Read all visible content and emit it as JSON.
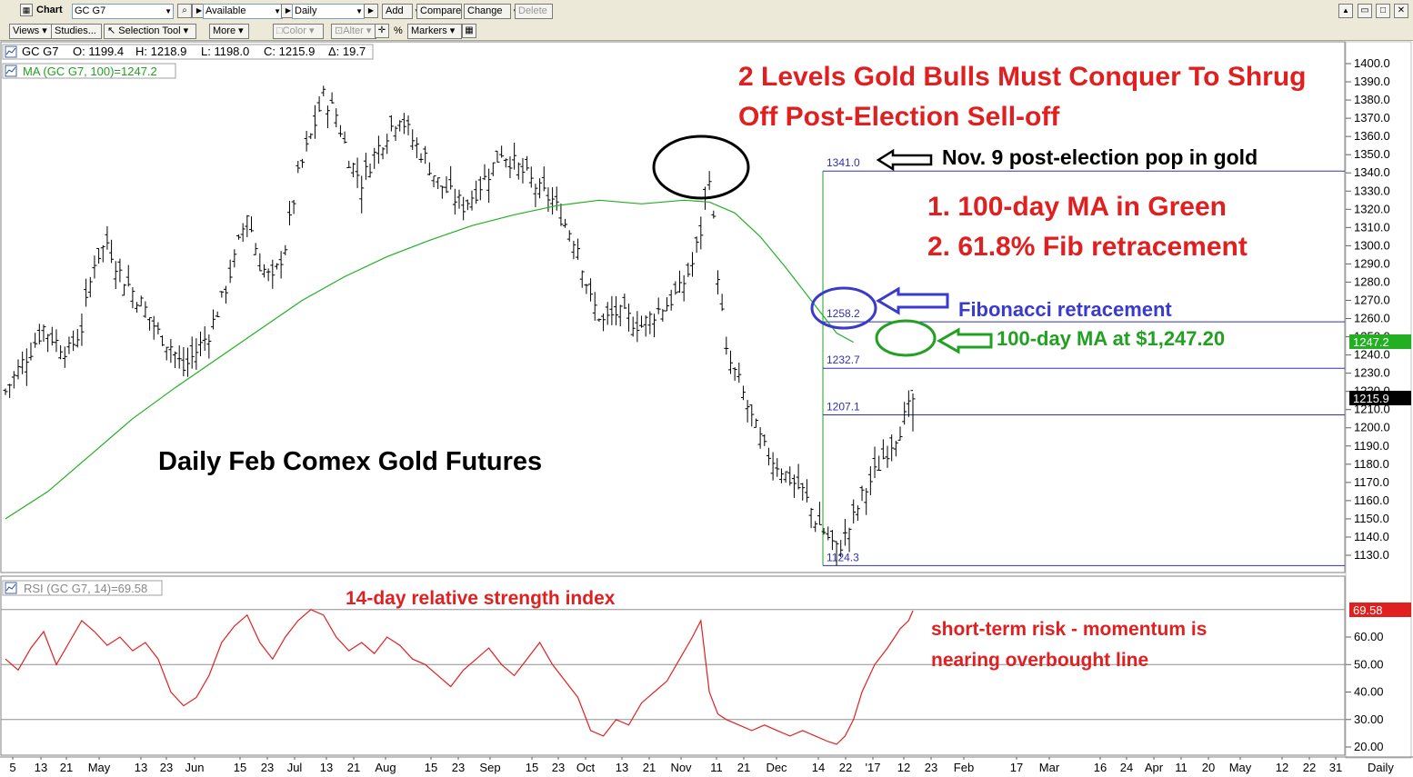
{
  "toolbar": {
    "chart_label": "Chart",
    "symbol": "GC G7",
    "list": "Available",
    "period": "Daily",
    "add": "Add",
    "compare": "Compare",
    "change": "Change",
    "delete": "Delete"
  },
  "toolbar2": {
    "views": "Views",
    "studies": "Studies...",
    "selection_tool": "Selection Tool",
    "more": "More",
    "color": "Color",
    "alter": "Alter",
    "percent": "%",
    "markers": "Markers"
  },
  "price_panel": {
    "symbol_label": "GC G7",
    "open": "O: 1199.4",
    "high": "H: 1218.9",
    "low": "L: 1198.0",
    "close": "C: 1215.9",
    "delta": "Δ: 19.7",
    "ma_label": "MA (GC G7, 100)=1247.2",
    "last_price_tag": "1215.9",
    "ma_price_tag": "1247.2"
  },
  "rsi_panel": {
    "label": "RSI (GC G7, 14)=69.58",
    "value_tag": "69.58",
    "y_ticks": [
      "60.00",
      "50.00",
      "40.00",
      "30.00",
      "20.00"
    ]
  },
  "annotations": {
    "headline_line1": "2 Levels Gold Bulls Must Conquer To Shrug",
    "headline_line2": "Off Post-Election Sell-off",
    "nov9": "Nov. 9 post-election pop in gold",
    "item1": "1. 100-day MA in Green",
    "item2": "2. 61.8% Fib retracement",
    "fib": "Fibonacci retracement",
    "ma": "100-day MA at $1,247.20",
    "chart_title": "Daily Feb Comex Gold Futures",
    "rsi_title": "14-day relative strength index",
    "risk_line1": "short-term risk - momentum is",
    "risk_line2": "nearing overbought line"
  },
  "chart_data": [
    {
      "type": "ohlc",
      "symbol": "GC G7",
      "period": "Daily",
      "ylim": [
        1120,
        1410
      ],
      "y_ticks": [
        "1400.0",
        "1390.0",
        "1380.0",
        "1370.0",
        "1360.0",
        "1350.0",
        "1340.0",
        "1330.0",
        "1320.0",
        "1310.0",
        "1300.0",
        "1290.0",
        "1280.0",
        "1270.0",
        "1260.0",
        "1250.0",
        "1240.0",
        "1230.0",
        "1220.0",
        "1210.0",
        "1200.0",
        "1190.0",
        "1180.0",
        "1170.0",
        "1160.0",
        "1150.0",
        "1140.0",
        "1130.0"
      ],
      "x_ticks": [
        "5",
        "13",
        "21",
        "May",
        "13",
        "23",
        "Jun",
        "15",
        "23",
        "Jul",
        "13",
        "21",
        "Aug",
        "15",
        "23",
        "Sep",
        "15",
        "23",
        "Oct",
        "13",
        "21",
        "Nov",
        "11",
        "21",
        "Dec",
        "14",
        "22",
        "'17",
        "12",
        "23",
        "Feb",
        "17",
        "Mar",
        "16",
        "24",
        "Apr",
        "11",
        "20",
        "May",
        "12",
        "22",
        "31",
        "Daily"
      ],
      "close_path": [
        [
          0,
          1220
        ],
        [
          3,
          1232
        ],
        [
          6,
          1243
        ],
        [
          9,
          1255
        ],
        [
          12,
          1247
        ],
        [
          15,
          1242
        ],
        [
          18,
          1255
        ],
        [
          21,
          1292
        ],
        [
          24,
          1302
        ],
        [
          27,
          1285
        ],
        [
          30,
          1275
        ],
        [
          33,
          1265
        ],
        [
          36,
          1252
        ],
        [
          39,
          1245
        ],
        [
          42,
          1232
        ],
        [
          45,
          1242
        ],
        [
          48,
          1252
        ],
        [
          51,
          1270
        ],
        [
          54,
          1292
        ],
        [
          57,
          1318
        ],
        [
          60,
          1290
        ],
        [
          63,
          1280
        ],
        [
          66,
          1300
        ],
        [
          69,
          1338
        ],
        [
          72,
          1360
        ],
        [
          75,
          1382
        ],
        [
          78,
          1372
        ],
        [
          81,
          1348
        ],
        [
          84,
          1335
        ],
        [
          87,
          1350
        ],
        [
          90,
          1362
        ],
        [
          93,
          1372
        ],
        [
          96,
          1358
        ],
        [
          99,
          1348
        ],
        [
          102,
          1335
        ],
        [
          105,
          1328
        ],
        [
          108,
          1322
        ],
        [
          111,
          1330
        ],
        [
          114,
          1340
        ],
        [
          117,
          1352
        ],
        [
          120,
          1345
        ],
        [
          123,
          1338
        ],
        [
          126,
          1330
        ],
        [
          129,
          1325
        ],
        [
          132,
          1312
        ],
        [
          135,
          1300
        ],
        [
          138,
          1270
        ],
        [
          141,
          1258
        ],
        [
          144,
          1263
        ],
        [
          147,
          1260
        ],
        [
          150,
          1256
        ],
        [
          153,
          1263
        ],
        [
          156,
          1268
        ],
        [
          159,
          1275
        ],
        [
          162,
          1290
        ],
        [
          164,
          1308
        ],
        [
          166,
          1340
        ],
        [
          168,
          1285
        ],
        [
          170,
          1240
        ],
        [
          173,
          1225
        ],
        [
          176,
          1205
        ],
        [
          179,
          1188
        ],
        [
          182,
          1180
        ],
        [
          185,
          1172
        ],
        [
          188,
          1165
        ],
        [
          191,
          1150
        ],
        [
          194,
          1140
        ],
        [
          196,
          1133
        ],
        [
          198,
          1140
        ],
        [
          200,
          1150
        ],
        [
          202,
          1162
        ],
        [
          205,
          1175
        ],
        [
          208,
          1188
        ],
        [
          211,
          1200
        ],
        [
          213,
          1210
        ],
        [
          214,
          1216
        ]
      ],
      "ma_100": [
        [
          0,
          1150
        ],
        [
          10,
          1165
        ],
        [
          20,
          1185
        ],
        [
          30,
          1205
        ],
        [
          40,
          1222
        ],
        [
          50,
          1238
        ],
        [
          60,
          1254
        ],
        [
          70,
          1270
        ],
        [
          80,
          1283
        ],
        [
          90,
          1294
        ],
        [
          100,
          1303
        ],
        [
          110,
          1311
        ],
        [
          120,
          1317
        ],
        [
          130,
          1322
        ],
        [
          140,
          1325
        ],
        [
          150,
          1323
        ],
        [
          160,
          1325
        ],
        [
          166,
          1324
        ],
        [
          172,
          1318
        ],
        [
          178,
          1305
        ],
        [
          184,
          1288
        ],
        [
          190,
          1270
        ],
        [
          196,
          1252
        ],
        [
          200,
          1247
        ]
      ],
      "ma_value": 1247.2,
      "last_close": 1215.9,
      "fibonacci_levels": [
        {
          "label": "1341.0",
          "value": 1341.0
        },
        {
          "label": "1258.2",
          "value": 1258.2
        },
        {
          "label": "1232.7",
          "value": 1232.7
        },
        {
          "label": "1207.1",
          "value": 1207.1
        },
        {
          "label": "1124.3",
          "value": 1124.3
        }
      ]
    },
    {
      "type": "line",
      "name": "RSI (GC G7, 14)",
      "ylim": [
        15,
        75
      ],
      "y_ticks": [
        "60.00",
        "50.00",
        "40.00",
        "30.00",
        "20.00"
      ],
      "reference_lines": [
        70,
        50,
        30
      ],
      "values": [
        [
          0,
          52
        ],
        [
          3,
          48
        ],
        [
          6,
          56
        ],
        [
          9,
          62
        ],
        [
          12,
          50
        ],
        [
          15,
          58
        ],
        [
          18,
          66
        ],
        [
          21,
          62
        ],
        [
          24,
          57
        ],
        [
          27,
          60
        ],
        [
          30,
          55
        ],
        [
          33,
          58
        ],
        [
          36,
          52
        ],
        [
          39,
          40
        ],
        [
          42,
          35
        ],
        [
          45,
          38
        ],
        [
          48,
          46
        ],
        [
          51,
          58
        ],
        [
          54,
          64
        ],
        [
          57,
          68
        ],
        [
          60,
          58
        ],
        [
          63,
          52
        ],
        [
          66,
          60
        ],
        [
          69,
          66
        ],
        [
          72,
          70
        ],
        [
          75,
          68
        ],
        [
          78,
          60
        ],
        [
          81,
          55
        ],
        [
          84,
          58
        ],
        [
          87,
          54
        ],
        [
          90,
          60
        ],
        [
          93,
          57
        ],
        [
          96,
          52
        ],
        [
          99,
          50
        ],
        [
          102,
          46
        ],
        [
          105,
          42
        ],
        [
          108,
          48
        ],
        [
          111,
          52
        ],
        [
          114,
          56
        ],
        [
          117,
          50
        ],
        [
          120,
          46
        ],
        [
          123,
          52
        ],
        [
          126,
          58
        ],
        [
          129,
          50
        ],
        [
          132,
          44
        ],
        [
          135,
          38
        ],
        [
          138,
          26
        ],
        [
          141,
          24
        ],
        [
          144,
          30
        ],
        [
          147,
          28
        ],
        [
          150,
          36
        ],
        [
          153,
          40
        ],
        [
          156,
          44
        ],
        [
          159,
          52
        ],
        [
          162,
          60
        ],
        [
          164,
          66
        ],
        [
          166,
          40
        ],
        [
          168,
          32
        ],
        [
          170,
          30
        ],
        [
          173,
          28
        ],
        [
          176,
          26
        ],
        [
          179,
          28
        ],
        [
          182,
          26
        ],
        [
          185,
          24
        ],
        [
          188,
          26
        ],
        [
          191,
          24
        ],
        [
          194,
          22
        ],
        [
          196,
          21
        ],
        [
          198,
          24
        ],
        [
          200,
          30
        ],
        [
          202,
          40
        ],
        [
          205,
          50
        ],
        [
          208,
          56
        ],
        [
          211,
          63
        ],
        [
          213,
          66
        ],
        [
          214,
          69.58
        ]
      ],
      "last_value": 69.58
    }
  ]
}
